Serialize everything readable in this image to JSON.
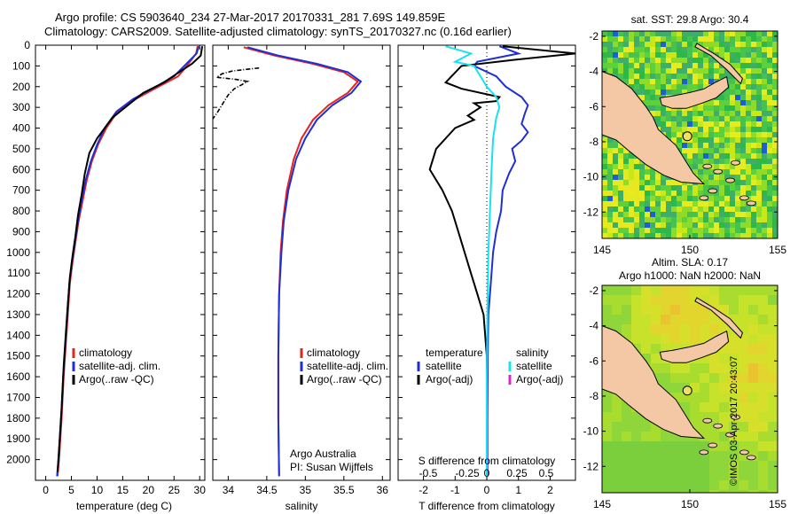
{
  "header": {
    "line1": "Argo profile: CS 5903640_234 27-Mar-2017 20170331_281 7.69S 149.859E",
    "line2": "Climatology: CARS2009. Satellite-adjusted climatology: synTS_20170327.nc (0.16d earlier)"
  },
  "copyright": "©IMOS 03-Apr-2017 20:43:07",
  "colors": {
    "climatology": "#e8231b",
    "satellite": "#1f2fd6",
    "argo": "#000000",
    "cyan": "#18e1f0",
    "magenta": "#e020e0",
    "land": "#f5c8a5",
    "marker": "#f0e060"
  },
  "chart_data": [
    {
      "type": "line",
      "name": "temperature-profile",
      "xlabel": "temperature (deg C)",
      "ylabel": "",
      "xlim": [
        -2,
        31
      ],
      "ylim": [
        2100,
        0
      ],
      "xticks": [
        0,
        5,
        10,
        15,
        20,
        25,
        30
      ],
      "yticks": [
        0,
        100,
        200,
        300,
        400,
        500,
        600,
        700,
        800,
        900,
        1000,
        1100,
        1200,
        1300,
        1400,
        1500,
        1600,
        1700,
        1800,
        1900,
        2000
      ],
      "legend": [
        "climatology",
        "satellite-adj. clim.",
        "Argo(..raw -QC)"
      ],
      "series": [
        {
          "name": "climatology",
          "color": "#e8231b",
          "points": [
            [
              29.6,
              5
            ],
            [
              29.3,
              40
            ],
            [
              27.5,
              100
            ],
            [
              25.8,
              150
            ],
            [
              22,
              200
            ],
            [
              17.5,
              260
            ],
            [
              14,
              320
            ],
            [
              11.8,
              400
            ],
            [
              10.2,
              480
            ],
            [
              9,
              560
            ],
            [
              8,
              650
            ],
            [
              7.2,
              750
            ],
            [
              6.4,
              850
            ],
            [
              5.8,
              950
            ],
            [
              5.2,
              1050
            ],
            [
              4.7,
              1150
            ],
            [
              4.3,
              1300
            ],
            [
              3.9,
              1450
            ],
            [
              3.5,
              1600
            ],
            [
              3.1,
              1800
            ],
            [
              2.6,
              2000
            ],
            [
              2.3,
              2080
            ]
          ]
        },
        {
          "name": "satellite",
          "color": "#1f2fd6",
          "points": [
            [
              29.8,
              5
            ],
            [
              29.4,
              40
            ],
            [
              27,
              100
            ],
            [
              25,
              150
            ],
            [
              21.5,
              200
            ],
            [
              17,
              260
            ],
            [
              13.8,
              320
            ],
            [
              11.5,
              400
            ],
            [
              10,
              480
            ],
            [
              8.8,
              560
            ],
            [
              7.8,
              650
            ],
            [
              7,
              750
            ],
            [
              6.3,
              850
            ],
            [
              5.7,
              950
            ],
            [
              5.1,
              1050
            ],
            [
              4.6,
              1150
            ],
            [
              4.2,
              1300
            ],
            [
              3.8,
              1450
            ],
            [
              3.4,
              1600
            ],
            [
              3,
              1800
            ],
            [
              2.5,
              2000
            ],
            [
              2.2,
              2080
            ]
          ]
        },
        {
          "name": "argo",
          "color": "#000000",
          "points": [
            [
              30.5,
              5
            ],
            [
              30.2,
              50
            ],
            [
              28.5,
              90
            ],
            [
              26,
              130
            ],
            [
              23,
              180
            ],
            [
              19,
              230
            ],
            [
              15.5,
              300
            ],
            [
              13,
              350
            ],
            [
              11.5,
              400
            ],
            [
              10,
              450
            ],
            [
              8.5,
              520
            ],
            [
              7.6,
              620
            ],
            [
              7,
              720
            ],
            [
              6.3,
              820
            ],
            [
              5.8,
              920
            ],
            [
              5.2,
              1020
            ],
            [
              4.7,
              1120
            ],
            [
              4.3,
              1250
            ],
            [
              3.9,
              1400
            ],
            [
              3.5,
              1550
            ],
            [
              3.1,
              1750
            ],
            [
              2.6,
              1950
            ],
            [
              2.3,
              2060
            ]
          ]
        }
      ]
    },
    {
      "type": "line",
      "name": "salinity-profile",
      "xlabel": "salinity",
      "xlim": [
        33.8,
        36.1
      ],
      "ylim": [
        2100,
        0
      ],
      "xticks": [
        34,
        34.5,
        35,
        35.5,
        36
      ],
      "legend": [
        "climatology",
        "satellite-adj. clim.",
        "Argo(..raw -QC)"
      ],
      "note1": "Argo Australia",
      "note2": "PI: Susan Wijffels",
      "series": [
        {
          "name": "climatology",
          "color": "#e8231b",
          "points": [
            [
              34.2,
              10
            ],
            [
              34.6,
              50
            ],
            [
              35.1,
              90
            ],
            [
              35.5,
              130
            ],
            [
              35.68,
              175
            ],
            [
              35.55,
              230
            ],
            [
              35.3,
              290
            ],
            [
              35.1,
              360
            ],
            [
              34.95,
              450
            ],
            [
              34.85,
              550
            ],
            [
              34.76,
              700
            ],
            [
              34.71,
              850
            ],
            [
              34.68,
              1000
            ],
            [
              34.66,
              1200
            ],
            [
              34.65,
              1500
            ],
            [
              34.65,
              1800
            ],
            [
              34.66,
              2080
            ]
          ]
        },
        {
          "name": "satellite",
          "color": "#1f2fd6",
          "points": [
            [
              34.25,
              10
            ],
            [
              34.65,
              50
            ],
            [
              35.15,
              90
            ],
            [
              35.55,
              130
            ],
            [
              35.72,
              175
            ],
            [
              35.6,
              230
            ],
            [
              35.35,
              290
            ],
            [
              35.15,
              360
            ],
            [
              35,
              450
            ],
            [
              34.88,
              550
            ],
            [
              34.78,
              700
            ],
            [
              34.72,
              850
            ],
            [
              34.69,
              1000
            ],
            [
              34.66,
              1200
            ],
            [
              34.65,
              1500
            ],
            [
              34.65,
              1800
            ],
            [
              34.66,
              2080
            ]
          ]
        },
        {
          "name": "argo",
          "color": "#000000",
          "points": [
            [
              34.4,
              110
            ],
            [
              34.2,
              118
            ],
            [
              34.05,
              125
            ],
            [
              33.92,
              138
            ],
            [
              33.85,
              155
            ],
            [
              34.1,
              165
            ],
            [
              34.25,
              175
            ],
            [
              34.18,
              190
            ],
            [
              34.08,
              210
            ],
            [
              34,
              240
            ],
            [
              33.95,
              270
            ],
            [
              33.9,
              300
            ],
            [
              33.85,
              330
            ],
            [
              33.8,
              355
            ]
          ]
        }
      ]
    },
    {
      "type": "line",
      "name": "difference-profile",
      "xlabel": "T difference from climatology",
      "xlabel2": "S difference from climatology",
      "xlim": [
        -2.8,
        2.8
      ],
      "ylim": [
        2100,
        0
      ],
      "xticks": [
        -2,
        -1,
        0,
        1,
        2
      ],
      "xticklabels_s": [
        "-0.5",
        "-0.25",
        "0",
        "0.25",
        "0.5"
      ],
      "legend_left": [
        "temperature",
        "satellite",
        "Argo(-adj)"
      ],
      "legend_right": [
        "salinity",
        "satellite",
        "Argo(-adj)"
      ],
      "series": [
        {
          "name": "temperature-satellite",
          "color": "#1f2fd6",
          "points": [
            [
              0.4,
              5
            ],
            [
              1,
              40
            ],
            [
              -0.3,
              80
            ],
            [
              -0.4,
              100
            ],
            [
              0.3,
              150
            ],
            [
              0.6,
              200
            ],
            [
              1.1,
              250
            ],
            [
              1.3,
              290
            ],
            [
              1.2,
              330
            ],
            [
              1.1,
              380
            ],
            [
              1.3,
              420
            ],
            [
              1.1,
              460
            ],
            [
              0.8,
              500
            ],
            [
              0.9,
              560
            ],
            [
              0.7,
              620
            ],
            [
              0.5,
              700
            ],
            [
              0.45,
              800
            ],
            [
              0.3,
              900
            ],
            [
              0.2,
              1000
            ],
            [
              0.15,
              1100
            ],
            [
              0.1,
              1200
            ],
            [
              0.05,
              1300
            ],
            [
              0.03,
              1500
            ],
            [
              0.02,
              1800
            ],
            [
              0.02,
              2080
            ]
          ]
        },
        {
          "name": "temperature-argo",
          "color": "#000000",
          "points": [
            [
              0.5,
              5
            ],
            [
              2.8,
              40
            ],
            [
              0.9,
              70
            ],
            [
              -0.8,
              100
            ],
            [
              -1.3,
              180
            ],
            [
              -0.8,
              210
            ],
            [
              0.4,
              250
            ],
            [
              0.3,
              270
            ],
            [
              -0.4,
              280
            ],
            [
              -0.2,
              300
            ],
            [
              -0.6,
              340
            ],
            [
              -0.4,
              360
            ],
            [
              -1,
              400
            ],
            [
              -1.6,
              500
            ],
            [
              -1.8,
              600
            ],
            [
              -1.4,
              700
            ],
            [
              -1.1,
              800
            ],
            [
              -0.9,
              900
            ],
            [
              -0.7,
              1000
            ],
            [
              -0.5,
              1100
            ],
            [
              -0.3,
              1200
            ],
            [
              -0.1,
              1300
            ],
            [
              0,
              1500
            ],
            [
              0,
              1800
            ],
            [
              0,
              2080
            ]
          ]
        },
        {
          "name": "salinity-satellite",
          "color": "#18e1f0",
          "points": [
            [
              -1.3,
              5
            ],
            [
              -0.5,
              40
            ],
            [
              -1,
              80
            ],
            [
              -0.4,
              100
            ],
            [
              -0.2,
              150
            ],
            [
              0,
              200
            ],
            [
              0.3,
              250
            ],
            [
              0.4,
              300
            ],
            [
              0.3,
              350
            ],
            [
              0.2,
              450
            ],
            [
              0.15,
              600
            ],
            [
              0.1,
              800
            ],
            [
              0.05,
              1000
            ],
            [
              0.02,
              1300
            ],
            [
              0,
              1600
            ],
            [
              0,
              2080
            ]
          ]
        }
      ]
    },
    {
      "type": "heatmap",
      "name": "sst-map",
      "title": "sat. SST: 29.8 Argo: 30.4",
      "xlim": [
        145,
        155
      ],
      "ylim": [
        -13.5,
        -1.7
      ],
      "xticks": [
        145,
        150,
        155
      ],
      "yticks": [
        -2,
        -4,
        -6,
        -8,
        -10,
        -12
      ],
      "marker": [
        149.859,
        -7.69
      ]
    },
    {
      "type": "heatmap",
      "name": "sla-map",
      "title": "Altim. SLA: 0.17",
      "subtitle": "Argo h1000: NaN h2000: NaN",
      "xlim": [
        145,
        155
      ],
      "ylim": [
        -13.5,
        -1.7
      ],
      "xticks": [
        145,
        150,
        155
      ],
      "yticks": [
        -2,
        -4,
        -6,
        -8,
        -10,
        -12
      ],
      "marker": [
        149.859,
        -7.69
      ]
    }
  ]
}
